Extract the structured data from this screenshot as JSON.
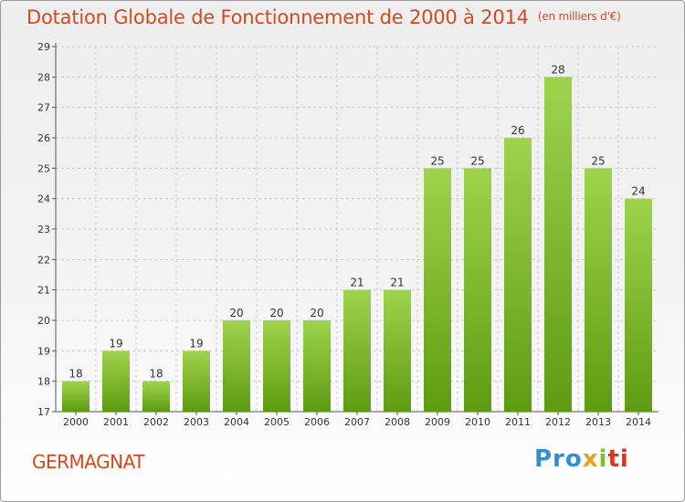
{
  "title": {
    "main": "Dotation Globale de Fonctionnement de 2000 à 2014",
    "unit": "(en milliers d'€)"
  },
  "commune": "GERMAGNAT",
  "logo": {
    "parts": [
      "Pro",
      "x",
      "i",
      "ti"
    ],
    "colors": [
      "#2f8fd8",
      "#e7a323",
      "#7fbf2a",
      "#d9381e"
    ]
  },
  "chart_data": {
    "type": "bar",
    "title": "Dotation Globale de Fonctionnement de 2000 à 2014",
    "ylabel": "(en milliers d'€)",
    "xlabel": "",
    "categories": [
      "2000",
      "2001",
      "2002",
      "2003",
      "2004",
      "2005",
      "2006",
      "2007",
      "2008",
      "2009",
      "2010",
      "2011",
      "2012",
      "2013",
      "2014"
    ],
    "values": [
      18,
      19,
      18,
      19,
      20,
      20,
      20,
      21,
      21,
      25,
      25,
      26,
      28,
      25,
      24
    ],
    "ylim": [
      17,
      29
    ],
    "yticks": [
      17,
      18,
      19,
      20,
      21,
      22,
      23,
      24,
      25,
      26,
      27,
      28,
      29
    ],
    "grid": true,
    "colors": {
      "bar_top": "#9fd34c",
      "bar_bottom": "#5d9c12",
      "grid": "#cccccc",
      "axis": "#555555"
    }
  }
}
